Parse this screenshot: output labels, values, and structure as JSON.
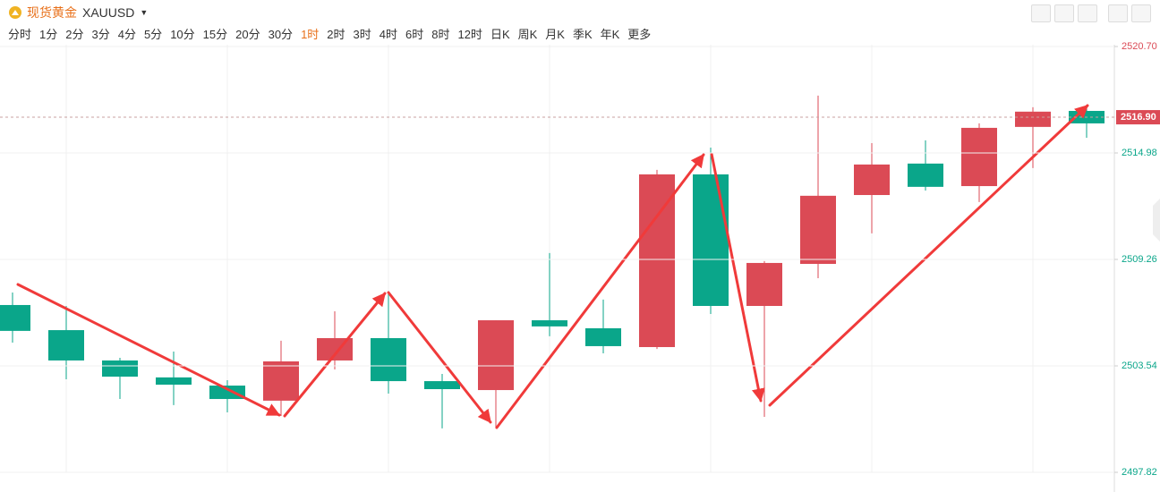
{
  "header": {
    "name": "现货黄金",
    "code": "XAUUSD"
  },
  "periods": [
    "分时",
    "1分",
    "2分",
    "3分",
    "4分",
    "5分",
    "10分",
    "15分",
    "20分",
    "30分",
    "1时",
    "2时",
    "3时",
    "4时",
    "6时",
    "8时",
    "12时",
    "日K",
    "周K",
    "月K",
    "季K",
    "年K",
    "更多"
  ],
  "active_period": "1时",
  "chart_data": {
    "type": "candlestick",
    "open": [
      2506.81,
      2505.46,
      2503.83,
      2502.92,
      2502.48,
      2501.67,
      2503.83,
      2505.03,
      2502.72,
      2502.24,
      2505.99,
      2505.56,
      2504.55,
      2513.83,
      2506.76,
      2509.02,
      2512.72,
      2514.41,
      2513.2,
      2516.38,
      2517.24
    ],
    "high": [
      2507.48,
      2506.76,
      2503.97,
      2504.31,
      2502.77,
      2504.89,
      2506.47,
      2507.53,
      2503.11,
      2505.99,
      2509.6,
      2507.1,
      2514.07,
      2515.27,
      2509.17,
      2518.06,
      2515.51,
      2515.66,
      2516.57,
      2517.44,
      2517.53
    ],
    "low": [
      2504.79,
      2502.82,
      2501.76,
      2501.43,
      2501.04,
      2500.85,
      2503.35,
      2502.05,
      2500.18,
      2500.18,
      2505.13,
      2504.21,
      2504.45,
      2506.33,
      2500.8,
      2508.25,
      2510.66,
      2512.96,
      2512.34,
      2514.17,
      2515.8
    ],
    "close": [
      2505.42,
      2503.83,
      2502.96,
      2502.53,
      2501.76,
      2503.78,
      2505.03,
      2502.72,
      2502.29,
      2505.99,
      2505.66,
      2504.6,
      2513.83,
      2506.76,
      2509.07,
      2512.68,
      2514.36,
      2513.16,
      2516.33,
      2517.2,
      2516.57
    ],
    "up_color": "#db4a55",
    "down_color": "#0aa68a",
    "ylim": [
      2497.82,
      2520.7
    ],
    "yticks": [
      {
        "value": 2497.82,
        "label": "2497.82"
      },
      {
        "value": 2503.54,
        "label": "2503.54"
      },
      {
        "value": 2509.26,
        "label": "2509.26"
      },
      {
        "value": 2514.98,
        "label": "2514.98"
      },
      {
        "value": 2520.7,
        "label": "2520.70"
      }
    ],
    "last_price": {
      "value": 2516.9,
      "label": "2516.90"
    },
    "grid": true
  }
}
